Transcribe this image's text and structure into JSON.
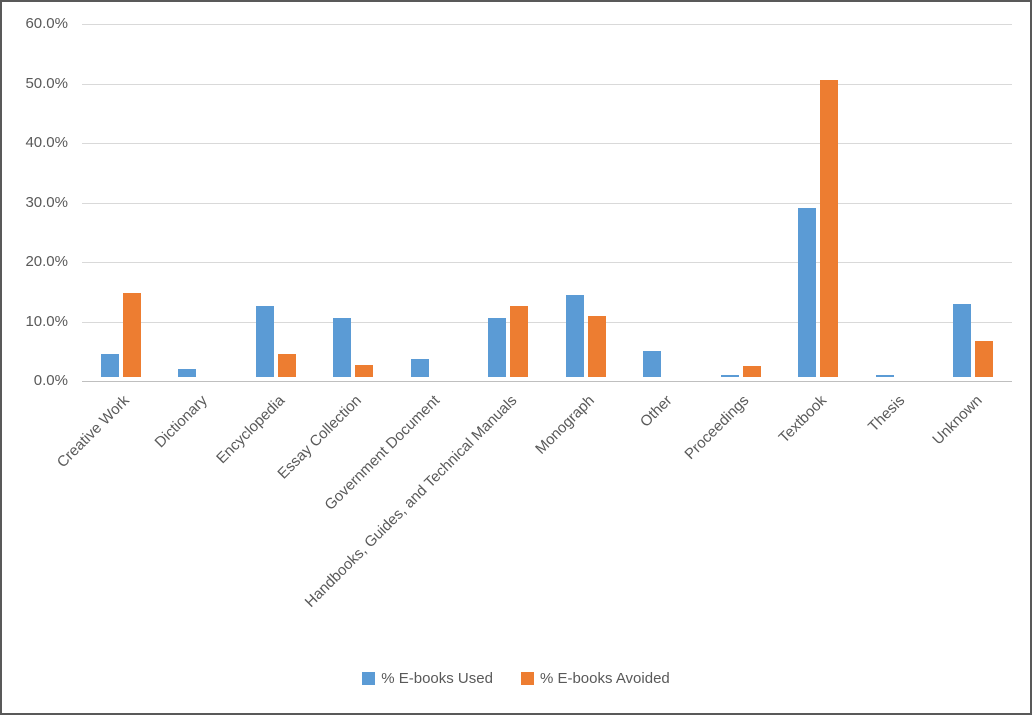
{
  "chart_data": {
    "type": "bar",
    "title": "",
    "xlabel": "",
    "ylabel": "",
    "categories": [
      "Creative Work",
      "Dictionary",
      "Encyclopedia",
      "Essay Collection",
      "Government Document",
      "Handbooks, Guides, and Technical Manuals",
      "Monograph",
      "Other",
      "Proceedings",
      "Textbook",
      "Thesis",
      "Unknown"
    ],
    "series": [
      {
        "name": "% E-books Used",
        "color": "#5B9BD5",
        "values": [
          3.9,
          1.4,
          12.0,
          9.9,
          3.0,
          9.9,
          13.8,
          4.4,
          0.4,
          28.4,
          0.4,
          12.2
        ]
      },
      {
        "name": "% E-books Avoided",
        "color": "#ED7D31",
        "values": [
          14.1,
          0,
          3.9,
          2.0,
          0,
          12.0,
          10.2,
          0,
          1.9,
          50.0,
          0,
          6.1
        ]
      }
    ],
    "ylim": [
      0,
      60
    ],
    "ytick_step": 10,
    "ytick_labels": [
      "0.0%",
      "10.0%",
      "20.0%",
      "30.0%",
      "40.0%",
      "50.0%",
      "60.0%"
    ],
    "grid": true,
    "legend_position": "bottom"
  },
  "colors": {
    "gridline": "#d9d9d9",
    "axis_line": "#bfbfbf",
    "axis_text": "#595959",
    "border": "#595959"
  }
}
